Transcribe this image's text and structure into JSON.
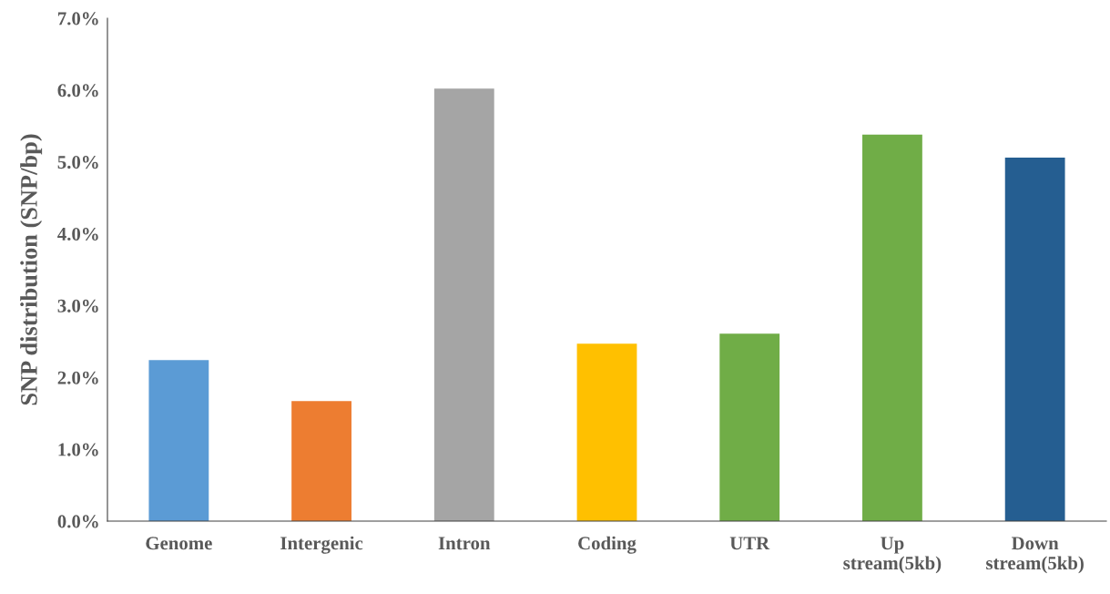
{
  "chart_data": {
    "type": "bar",
    "ylabel": "SNP distribution (SNP/bp)",
    "categories": [
      "Genome",
      "Intergenic",
      "Intron",
      "Coding",
      "UTR",
      "Up\nstream(5kb)",
      "Down\nstream(5kb)"
    ],
    "values": [
      2.24,
      1.67,
      6.02,
      2.47,
      2.61,
      5.38,
      5.06
    ],
    "colors": [
      "#5b9bd5",
      "#ed7d31",
      "#a5a5a5",
      "#ffc000",
      "#70ad47",
      "#70ad47",
      "#255e91"
    ],
    "ylim": [
      0,
      7
    ],
    "yticks": [
      {
        "value": 0,
        "label": "0.0%"
      },
      {
        "value": 1,
        "label": "1.0%"
      },
      {
        "value": 2,
        "label": "2.0%"
      },
      {
        "value": 3,
        "label": "3.0%"
      },
      {
        "value": 4,
        "label": "4.0%"
      },
      {
        "value": 5,
        "label": "5.0%"
      },
      {
        "value": 6,
        "label": "6.0%"
      },
      {
        "value": 7,
        "label": "7.0%"
      }
    ],
    "grid": false,
    "legend": false
  }
}
